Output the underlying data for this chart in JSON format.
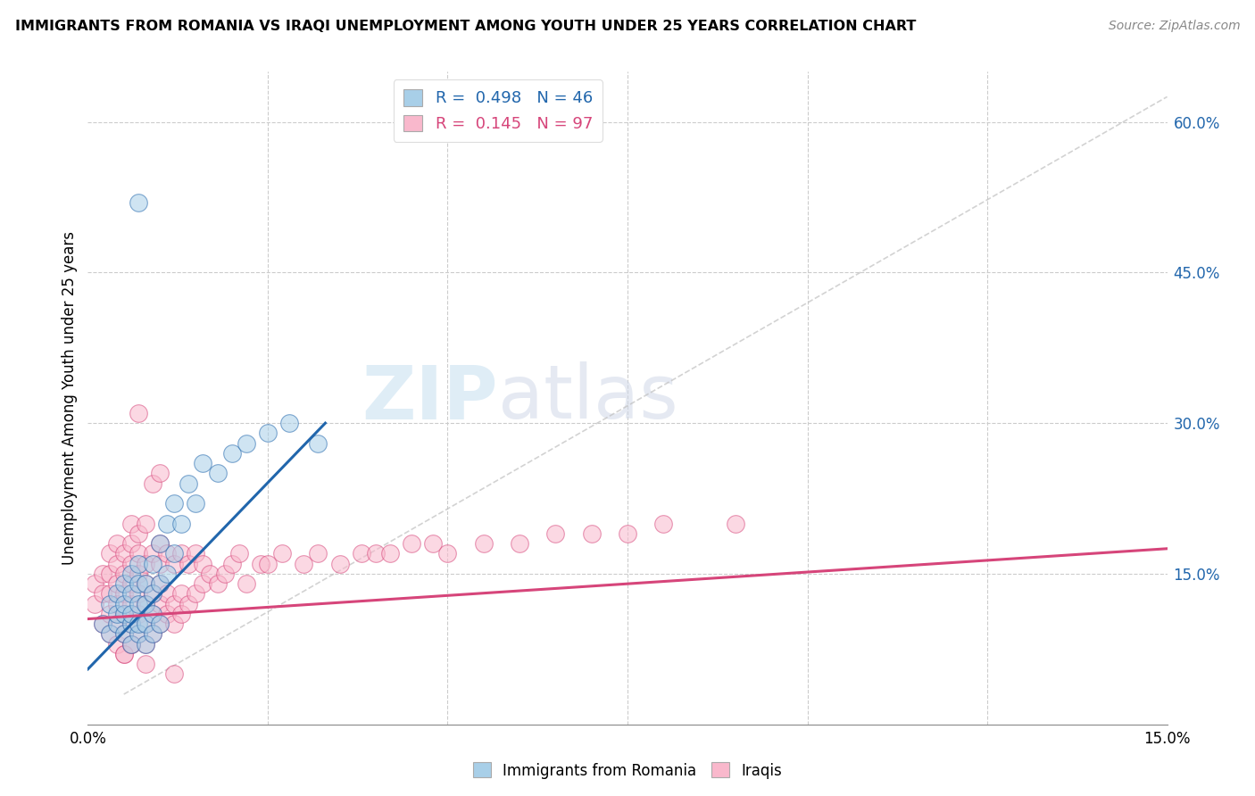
{
  "title": "IMMIGRANTS FROM ROMANIA VS IRAQI UNEMPLOYMENT AMONG YOUTH UNDER 25 YEARS CORRELATION CHART",
  "source": "Source: ZipAtlas.com",
  "ylabel": "Unemployment Among Youth under 25 years",
  "xlim": [
    0.0,
    0.15
  ],
  "ylim": [
    0.0,
    0.65
  ],
  "color_romania": "#a8cfe8",
  "color_iraqi": "#f9b8cc",
  "color_regression_romania": "#2166ac",
  "color_regression_iraqi": "#d6457a",
  "color_diagonal": "#c0c0c0",
  "watermark_zip": "ZIP",
  "watermark_atlas": "atlas",
  "romania_x": [
    0.002,
    0.003,
    0.003,
    0.004,
    0.004,
    0.004,
    0.005,
    0.005,
    0.005,
    0.005,
    0.006,
    0.006,
    0.006,
    0.006,
    0.006,
    0.007,
    0.007,
    0.007,
    0.007,
    0.007,
    0.008,
    0.008,
    0.008,
    0.008,
    0.009,
    0.009,
    0.009,
    0.009,
    0.01,
    0.01,
    0.01,
    0.011,
    0.011,
    0.012,
    0.012,
    0.013,
    0.014,
    0.015,
    0.016,
    0.018,
    0.02,
    0.022,
    0.025,
    0.028,
    0.032,
    0.007
  ],
  "romania_y": [
    0.1,
    0.09,
    0.12,
    0.1,
    0.11,
    0.13,
    0.09,
    0.11,
    0.12,
    0.14,
    0.08,
    0.1,
    0.11,
    0.13,
    0.15,
    0.09,
    0.1,
    0.12,
    0.14,
    0.16,
    0.08,
    0.1,
    0.12,
    0.14,
    0.09,
    0.11,
    0.13,
    0.16,
    0.1,
    0.14,
    0.18,
    0.15,
    0.2,
    0.17,
    0.22,
    0.2,
    0.24,
    0.22,
    0.26,
    0.25,
    0.27,
    0.28,
    0.29,
    0.3,
    0.28,
    0.52
  ],
  "iraqi_x": [
    0.001,
    0.001,
    0.002,
    0.002,
    0.002,
    0.003,
    0.003,
    0.003,
    0.003,
    0.003,
    0.004,
    0.004,
    0.004,
    0.004,
    0.004,
    0.004,
    0.005,
    0.005,
    0.005,
    0.005,
    0.005,
    0.005,
    0.006,
    0.006,
    0.006,
    0.006,
    0.006,
    0.006,
    0.006,
    0.007,
    0.007,
    0.007,
    0.007,
    0.007,
    0.007,
    0.008,
    0.008,
    0.008,
    0.008,
    0.008,
    0.008,
    0.009,
    0.009,
    0.009,
    0.009,
    0.01,
    0.01,
    0.01,
    0.01,
    0.01,
    0.011,
    0.011,
    0.011,
    0.012,
    0.012,
    0.012,
    0.013,
    0.013,
    0.013,
    0.014,
    0.014,
    0.015,
    0.015,
    0.016,
    0.016,
    0.017,
    0.018,
    0.019,
    0.02,
    0.021,
    0.022,
    0.024,
    0.025,
    0.027,
    0.03,
    0.032,
    0.035,
    0.038,
    0.04,
    0.042,
    0.045,
    0.048,
    0.05,
    0.055,
    0.06,
    0.065,
    0.07,
    0.075,
    0.08,
    0.09,
    0.007,
    0.009,
    0.01,
    0.005,
    0.006,
    0.008,
    0.012
  ],
  "iraqi_y": [
    0.12,
    0.14,
    0.1,
    0.13,
    0.15,
    0.09,
    0.11,
    0.13,
    0.15,
    0.17,
    0.08,
    0.1,
    0.12,
    0.14,
    0.16,
    0.18,
    0.09,
    0.11,
    0.13,
    0.15,
    0.17,
    0.07,
    0.08,
    0.1,
    0.12,
    0.14,
    0.16,
    0.18,
    0.2,
    0.09,
    0.11,
    0.13,
    0.15,
    0.17,
    0.19,
    0.08,
    0.1,
    0.12,
    0.14,
    0.16,
    0.2,
    0.09,
    0.11,
    0.13,
    0.17,
    0.1,
    0.12,
    0.14,
    0.16,
    0.18,
    0.11,
    0.13,
    0.17,
    0.1,
    0.12,
    0.16,
    0.11,
    0.13,
    0.17,
    0.12,
    0.16,
    0.13,
    0.17,
    0.14,
    0.16,
    0.15,
    0.14,
    0.15,
    0.16,
    0.17,
    0.14,
    0.16,
    0.16,
    0.17,
    0.16,
    0.17,
    0.16,
    0.17,
    0.17,
    0.17,
    0.18,
    0.18,
    0.17,
    0.18,
    0.18,
    0.19,
    0.19,
    0.19,
    0.2,
    0.2,
    0.31,
    0.24,
    0.25,
    0.07,
    0.08,
    0.06,
    0.05
  ],
  "regression_romania_x0": 0.0,
  "regression_romania_x1": 0.033,
  "regression_romania_y0": 0.055,
  "regression_romania_y1": 0.3,
  "regression_iraqi_x0": 0.0,
  "regression_iraqi_x1": 0.15,
  "regression_iraqi_y0": 0.105,
  "regression_iraqi_y1": 0.175
}
